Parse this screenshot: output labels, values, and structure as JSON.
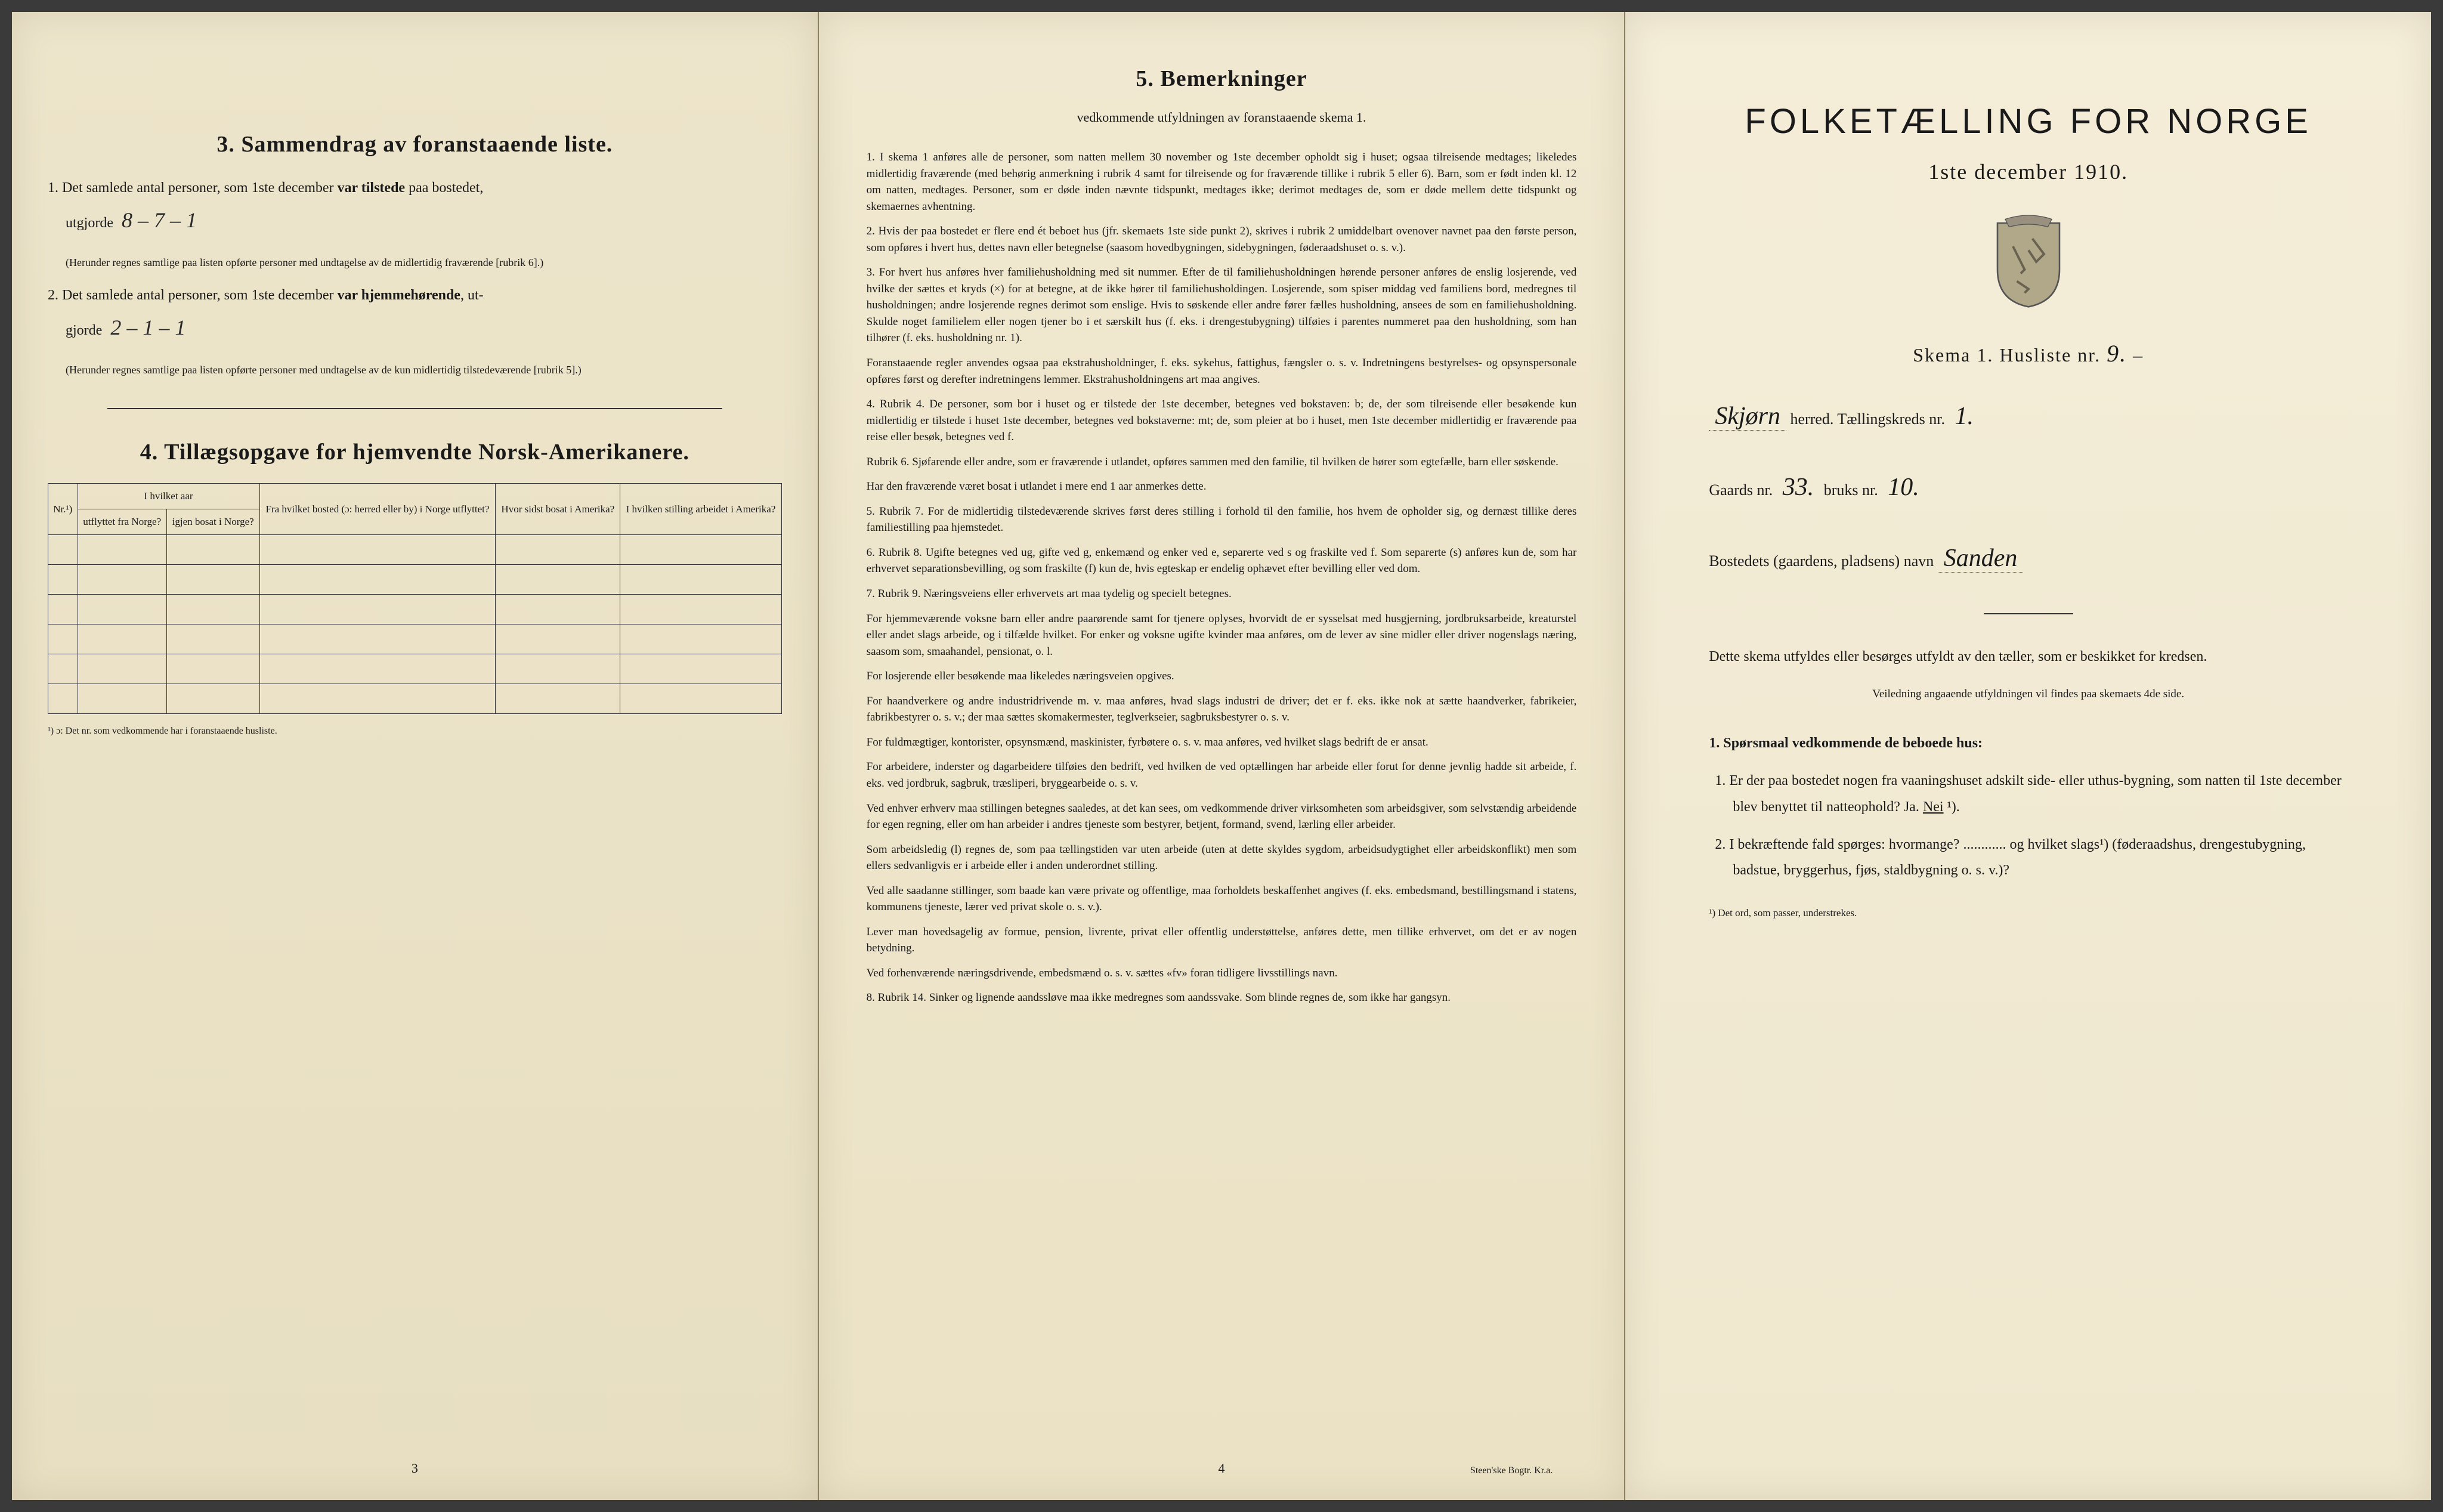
{
  "page1": {
    "section3_title": "3.  Sammendrag av foranstaaende liste.",
    "item1_prefix": "1.  Det samlede antal personer, som 1ste december ",
    "item1_bold": "var tilstede",
    "item1_suffix": " paa bostedet,",
    "item1_line2_prefix": "utgjorde ",
    "item1_value": "8 – 7 – 1",
    "item1_note": "(Herunder regnes samtlige paa listen opførte personer med undtagelse av de midlertidig fraværende [rubrik 6].)",
    "item2_prefix": "2.  Det samlede antal personer, som 1ste december ",
    "item2_bold": "var hjemmehørende",
    "item2_suffix": ", ut-",
    "item2_line2_prefix": "gjorde ",
    "item2_value": "2 – 1 – 1",
    "item2_note": "(Herunder regnes samtlige paa listen opførte personer med undtagelse av de kun midlertidig tilstedeværende [rubrik 5].)",
    "section4_title": "4.  Tillægsopgave for hjemvendte Norsk-Amerikanere.",
    "table": {
      "h1": "Nr.¹)",
      "h2_top": "I hvilket aar",
      "h2a": "utflyttet fra Norge?",
      "h2b": "igjen bosat i Norge?",
      "h3": "Fra hvilket bosted (ɔ: herred eller by) i Norge utflyttet?",
      "h4": "Hvor sidst bosat i Amerika?",
      "h5": "I hvilken stilling arbeidet i Amerika?",
      "rows": 6
    },
    "table_footnote": "¹) ɔ: Det nr. som vedkommende har i foranstaaende husliste.",
    "page_num": "3"
  },
  "page2": {
    "title": "5.  Bemerkninger",
    "subtitle": "vedkommende utfyldningen av foranstaaende skema 1.",
    "items": [
      "1.  I skema 1 anføres alle de personer, som natten mellem 30 november og 1ste december opholdt sig i huset; ogsaa tilreisende medtages; likeledes midlertidig fraværende (med behørig anmerkning i rubrik 4 samt for tilreisende og for fraværende tillike i rubrik 5 eller 6). Barn, som er født inden kl. 12 om natten, medtages. Personer, som er døde inden nævnte tidspunkt, medtages ikke; derimot medtages de, som er døde mellem dette tidspunkt og skemaernes avhentning.",
      "2.  Hvis der paa bostedet er flere end ét beboet hus (jfr. skemaets 1ste side punkt 2), skrives i rubrik 2 umiddelbart ovenover navnet paa den første person, som opføres i hvert hus, dettes navn eller betegnelse (saasom hovedbygningen, sidebygningen, føderaadshuset o. s. v.).",
      "3.  For hvert hus anføres hver familiehusholdning med sit nummer. Efter de til familiehusholdningen hørende personer anføres de enslig losjerende, ved hvilke der sættes et kryds (×) for at betegne, at de ikke hører til familiehusholdingen. Losjerende, som spiser middag ved familiens bord, medregnes til husholdningen; andre losjerende regnes derimot som enslige. Hvis to søskende eller andre fører fælles husholdning, ansees de som en familiehusholdning. Skulde noget familielem eller nogen tjener bo i et særskilt hus (f. eks. i drengestubygning) tilføies i parentes nummeret paa den husholdning, som han tilhører (f. eks. husholdning nr. 1).",
      "    Foranstaaende regler anvendes ogsaa paa ekstrahusholdninger, f. eks. sykehus, fattighus, fængsler o. s. v. Indretningens bestyrelses- og opsynspersonale opføres først og derefter indretningens lemmer. Ekstrahusholdningens art maa angives.",
      "4.  Rubrik 4. De personer, som bor i huset og er tilstede der 1ste december, betegnes ved bokstaven: b; de, der som tilreisende eller besøkende kun midlertidig er tilstede i huset 1ste december, betegnes ved bokstaverne: mt; de, som pleier at bo i huset, men 1ste december midlertidig er fraværende paa reise eller besøk, betegnes ved f.",
      "    Rubrik 6. Sjøfarende eller andre, som er fraværende i utlandet, opføres sammen med den familie, til hvilken de hører som egtefælle, barn eller søskende.",
      "    Har den fraværende været bosat i utlandet i mere end 1 aar anmerkes dette.",
      "5.  Rubrik 7. For de midlertidig tilstedeværende skrives først deres stilling i forhold til den familie, hos hvem de opholder sig, og dernæst tillike deres familiestilling paa hjemstedet.",
      "6.  Rubrik 8. Ugifte betegnes ved ug, gifte ved g, enkemænd og enker ved e, separerte ved s og fraskilte ved f. Som separerte (s) anføres kun de, som har erhvervet separationsbevilling, og som fraskilte (f) kun de, hvis egteskap er endelig ophævet efter bevilling eller ved dom.",
      "7.  Rubrik 9. Næringsveiens eller erhvervets art maa tydelig og specielt betegnes.",
      "    For hjemmeværende voksne barn eller andre paarørende samt for tjenere oplyses, hvorvidt de er sysselsat med husgjerning, jordbruksarbeide, kreaturstel eller andet slags arbeide, og i tilfælde hvilket. For enker og voksne ugifte kvinder maa anføres, om de lever av sine midler eller driver nogenslags næring, saasom som, smaahandel, pensionat, o. l.",
      "    For losjerende eller besøkende maa likeledes næringsveien opgives.",
      "    For haandverkere og andre industridrivende m. v. maa anføres, hvad slags industri de driver; det er f. eks. ikke nok at sætte haandverker, fabrikeier, fabrikbestyrer o. s. v.; der maa sættes skomakermester, teglverkseier, sagbruksbestyrer o. s. v.",
      "    For fuldmægtiger, kontorister, opsynsmænd, maskinister, fyrbøtere o. s. v. maa anføres, ved hvilket slags bedrift de er ansat.",
      "    For arbeidere, inderster og dagarbeidere tilføies den bedrift, ved hvilken de ved optællingen har arbeide eller forut for denne jevnlig hadde sit arbeide, f. eks. ved jordbruk, sagbruk, træsliperi, bryggearbeide o. s. v.",
      "    Ved enhver erhverv maa stillingen betegnes saaledes, at det kan sees, om vedkommende driver virksomheten som arbeidsgiver, som selvstændig arbeidende for egen regning, eller om han arbeider i andres tjeneste som bestyrer, betjent, formand, svend, lærling eller arbeider.",
      "    Som arbeidsledig (l) regnes de, som paa tællingstiden var uten arbeide (uten at dette skyldes sygdom, arbeidsudygtighet eller arbeidskonflikt) men som ellers sedvanligvis er i arbeide eller i anden underordnet stilling.",
      "    Ved alle saadanne stillinger, som baade kan være private og offentlige, maa forholdets beskaffenhet angives (f. eks. embedsmand, bestillingsmand i statens, kommunens tjeneste, lærer ved privat skole o. s. v.).",
      "    Lever man hovedsagelig av formue, pension, livrente, privat eller offentlig understøttelse, anføres dette, men tillike erhvervet, om det er av nogen betydning.",
      "    Ved forhenværende næringsdrivende, embedsmænd o. s. v. sættes «fv» foran tidligere livsstillings navn.",
      "8.  Rubrik 14. Sinker og lignende aandssløve maa ikke medregnes som aandssvake. Som blinde regnes de, som ikke har gangsyn."
    ],
    "page_num": "4",
    "printer": "Steen'ske Bogtr.  Kr.a."
  },
  "page3": {
    "title": "FOLKETÆLLING FOR NORGE",
    "date": "1ste december 1910.",
    "skema_label": "Skema 1.  Husliste nr.",
    "skema_value": "9.",
    "herred_value": "Skjørn",
    "herred_label": "herred.  Tællingskreds nr.",
    "kreds_value": "1.",
    "gaards_label": "Gaards nr.",
    "gaards_value": "33.",
    "bruks_label": "bruks nr.",
    "bruks_value": "10.",
    "bosted_label": "Bostedets (gaardens, pladsens) navn",
    "bosted_value": "Sanden",
    "instruction": "Dette skema utfyldes eller besørges utfyldt av den tæller, som er beskikket for kredsen.",
    "instruction_small": "Veiledning angaaende utfyldningen vil findes paa skemaets 4de side.",
    "question_header": "1. Spørsmaal vedkommende de beboede hus:",
    "q1": "1.  Er der paa bostedet nogen fra vaaningshuset adskilt side- eller uthus-bygning, som natten til 1ste december blev benyttet til natteophold?   Ja.   Nei ¹).",
    "q2": "2.  I bekræftende fald spørges: hvormange? ............ og hvilket slags¹) (føderaadshus, drengestubygning, badstue, bryggerhus, fjøs, staldbygning o. s. v.)?",
    "footnote": "¹) Det ord, som passer, understrekes."
  },
  "colors": {
    "paper": "#ede5cb",
    "ink": "#1a1a1a",
    "border": "#333333"
  }
}
